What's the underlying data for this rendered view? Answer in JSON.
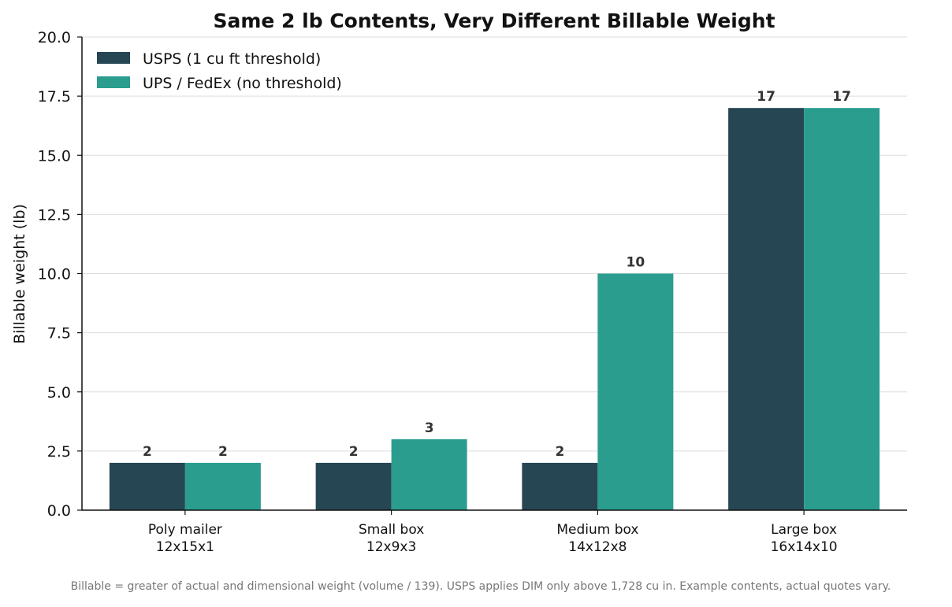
{
  "chart_data": {
    "type": "bar",
    "title": "Same 2 lb Contents, Very Different Billable Weight",
    "xlabel": "",
    "ylabel": "Billable weight (lb)",
    "ylim": [
      0,
      20
    ],
    "yticks": [
      "0.0",
      "2.5",
      "5.0",
      "7.5",
      "10.0",
      "12.5",
      "15.0",
      "17.5",
      "20.0"
    ],
    "categories": [
      [
        "Poly mailer",
        "12x15x1"
      ],
      [
        "Small box",
        "12x9x3"
      ],
      [
        "Medium box",
        "14x12x8"
      ],
      [
        "Large box",
        "16x14x10"
      ]
    ],
    "series": [
      {
        "name": "USPS (1 cu ft threshold)",
        "color": "#264653",
        "values": [
          2,
          2,
          2,
          17
        ]
      },
      {
        "name": "UPS / FedEx (no threshold)",
        "color": "#2a9d8f",
        "values": [
          2,
          3,
          10,
          17
        ]
      }
    ],
    "grid": true,
    "legend_position": "top-left",
    "footnote": "Billable = greater of actual and dimensional weight (volume / 139). USPS applies DIM only above 1,728 cu in. Example contents, actual quotes vary."
  }
}
